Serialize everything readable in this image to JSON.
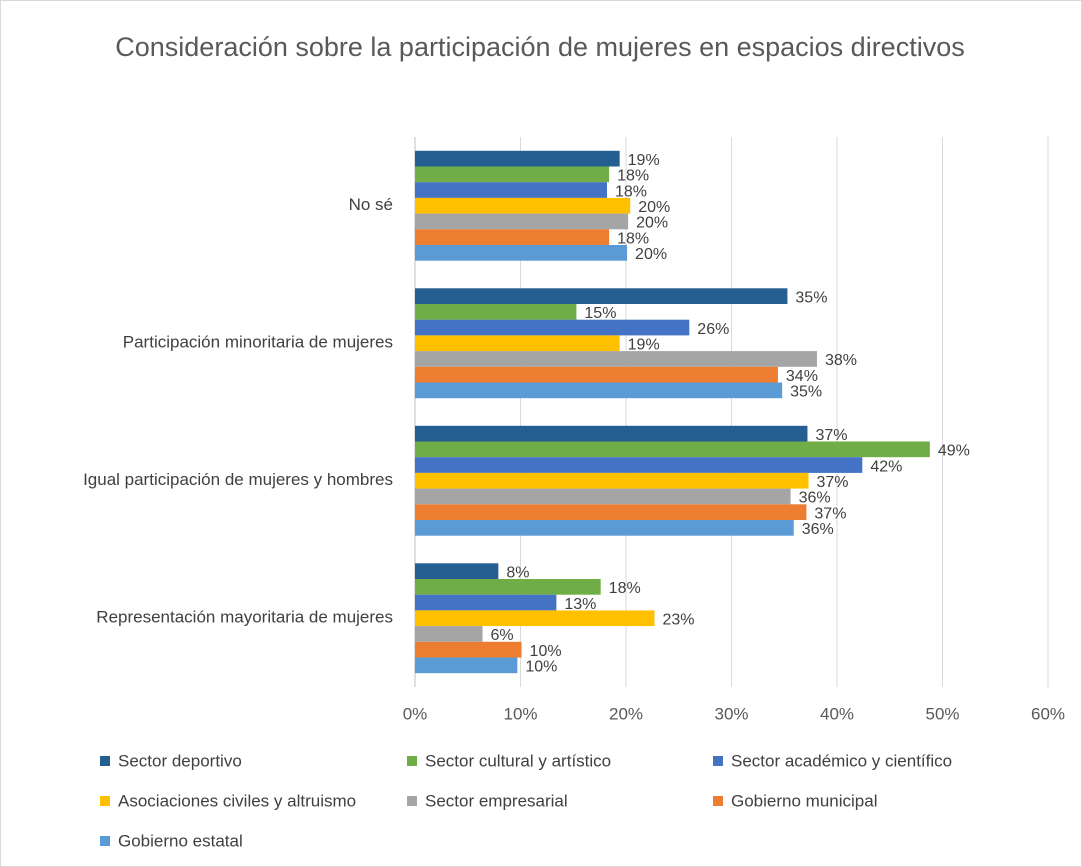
{
  "chart_data": {
    "type": "barh",
    "title": "Consideración sobre la participación de mujeres en espacios directivos",
    "categories": [
      "No sé",
      "Participación minoritaria de mujeres",
      "Igual participación de mujeres y hombres",
      "Representación mayoritaria de mujeres"
    ],
    "series": [
      {
        "name": "Sector deportivo",
        "color": "#255e91",
        "values": [
          19.4,
          35.3,
          37.2,
          7.9
        ],
        "value_labels": [
          "19%",
          "35%",
          "37%",
          "8%"
        ]
      },
      {
        "name": "Sector cultural y artístico",
        "color": "#70ad47",
        "values": [
          18.4,
          15.3,
          48.8,
          17.6
        ],
        "value_labels": [
          "18%",
          "15%",
          "49%",
          "18%"
        ]
      },
      {
        "name": "Sector académico y científico",
        "color": "#4472c4",
        "values": [
          18.2,
          26.0,
          42.4,
          13.4
        ],
        "value_labels": [
          "18%",
          "26%",
          "42%",
          "13%"
        ]
      },
      {
        "name": "Asociaciones civiles y altruismo",
        "color": "#ffc000",
        "values": [
          20.4,
          19.4,
          37.3,
          22.7
        ],
        "value_labels": [
          "20%",
          "19%",
          "37%",
          "23%"
        ]
      },
      {
        "name": "Sector empresarial",
        "color": "#a5a5a5",
        "values": [
          20.2,
          38.1,
          35.6,
          6.4
        ],
        "value_labels": [
          "20%",
          "38%",
          "36%",
          "6%"
        ]
      },
      {
        "name": "Gobierno municipal",
        "color": "#ed7d31",
        "values": [
          18.4,
          34.4,
          37.1,
          10.1
        ],
        "value_labels": [
          "18%",
          "34%",
          "37%",
          "10%"
        ]
      },
      {
        "name": "Gobierno estatal",
        "color": "#5b9bd5",
        "values": [
          20.1,
          34.8,
          35.9,
          9.7
        ],
        "value_labels": [
          "20%",
          "35%",
          "36%",
          "10%"
        ]
      }
    ],
    "xlim": [
      0,
      60
    ],
    "xticks": [
      {
        "value": 0,
        "label": "0%"
      },
      {
        "value": 10,
        "label": "10%"
      },
      {
        "value": 20,
        "label": "20%"
      },
      {
        "value": 30,
        "label": "30%"
      },
      {
        "value": 40,
        "label": "40%"
      },
      {
        "value": 50,
        "label": "50%"
      },
      {
        "value": 60,
        "label": "60%"
      }
    ],
    "grid": true,
    "legend": "bottom"
  }
}
